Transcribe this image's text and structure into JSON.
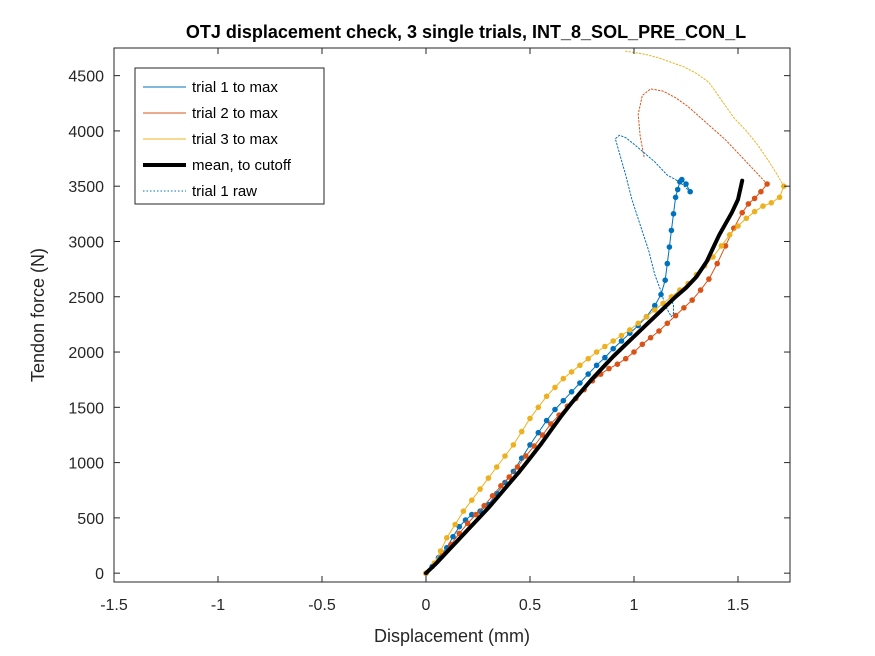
{
  "chart_data": {
    "type": "line",
    "title": "OTJ displacement check, 3 single trials, INT_8_SOL_PRE_CON_L",
    "xlabel": "Displacement (mm)",
    "ylabel": "Tendon force (N)",
    "xlim": [
      -1.5,
      1.75
    ],
    "ylim": [
      -80,
      4750
    ],
    "xticks": [
      -1.5,
      -1,
      -0.5,
      0,
      0.5,
      1,
      1.5
    ],
    "xtick_labels": [
      "-1.5",
      "-1",
      "-0.5",
      "0",
      "0.5",
      "1",
      "1.5"
    ],
    "yticks": [
      0,
      500,
      1000,
      1500,
      2000,
      2500,
      3000,
      3500,
      4000,
      4500
    ],
    "ytick_labels": [
      "0",
      "500",
      "1000",
      "1500",
      "2000",
      "2500",
      "3000",
      "3500",
      "4000",
      "4500"
    ],
    "grid": false,
    "legend_position": "top-left",
    "series": [
      {
        "name": "trial 1 to max",
        "color": "#0072BD",
        "style": "solid",
        "markers": true,
        "x": [
          0.0,
          0.03,
          0.06,
          0.1,
          0.13,
          0.16,
          0.19,
          0.22,
          0.26,
          0.3,
          0.34,
          0.38,
          0.42,
          0.46,
          0.5,
          0.54,
          0.58,
          0.62,
          0.66,
          0.7,
          0.74,
          0.78,
          0.82,
          0.86,
          0.9,
          0.94,
          0.98,
          1.02,
          1.06,
          1.1,
          1.13,
          1.15,
          1.16,
          1.17,
          1.18,
          1.19,
          1.2,
          1.21,
          1.22,
          1.23,
          1.25,
          1.27
        ],
        "y": [
          0,
          60,
          140,
          230,
          330,
          420,
          480,
          530,
          560,
          620,
          720,
          820,
          920,
          1040,
          1160,
          1270,
          1380,
          1480,
          1560,
          1640,
          1720,
          1800,
          1880,
          1950,
          2030,
          2100,
          2170,
          2240,
          2320,
          2420,
          2520,
          2650,
          2800,
          2950,
          3100,
          3250,
          3400,
          3470,
          3540,
          3560,
          3520,
          3450
        ]
      },
      {
        "name": "trial 2 to max",
        "color": "#D95319",
        "style": "solid",
        "markers": true,
        "x": [
          0.0,
          0.04,
          0.08,
          0.12,
          0.16,
          0.2,
          0.24,
          0.28,
          0.32,
          0.36,
          0.4,
          0.44,
          0.48,
          0.52,
          0.56,
          0.6,
          0.64,
          0.68,
          0.72,
          0.76,
          0.8,
          0.84,
          0.88,
          0.92,
          0.96,
          1.0,
          1.04,
          1.08,
          1.12,
          1.16,
          1.2,
          1.24,
          1.28,
          1.32,
          1.36,
          1.4,
          1.44,
          1.48,
          1.52,
          1.55,
          1.58,
          1.61,
          1.64
        ],
        "y": [
          0,
          80,
          170,
          260,
          360,
          450,
          530,
          610,
          700,
          790,
          870,
          960,
          1060,
          1150,
          1250,
          1350,
          1430,
          1510,
          1580,
          1660,
          1740,
          1800,
          1850,
          1890,
          1940,
          2000,
          2070,
          2130,
          2190,
          2260,
          2330,
          2400,
          2470,
          2560,
          2660,
          2800,
          2960,
          3120,
          3260,
          3340,
          3390,
          3450,
          3520
        ]
      },
      {
        "name": "trial 3 to max",
        "color": "#EDB120",
        "style": "solid",
        "markers": true,
        "x": [
          0.0,
          0.04,
          0.07,
          0.1,
          0.14,
          0.18,
          0.22,
          0.26,
          0.3,
          0.34,
          0.38,
          0.42,
          0.46,
          0.5,
          0.54,
          0.58,
          0.62,
          0.66,
          0.7,
          0.74,
          0.78,
          0.82,
          0.86,
          0.9,
          0.94,
          0.98,
          1.02,
          1.06,
          1.1,
          1.14,
          1.18,
          1.22,
          1.26,
          1.3,
          1.34,
          1.38,
          1.42,
          1.46,
          1.5,
          1.54,
          1.58,
          1.62,
          1.66,
          1.7,
          1.72
        ],
        "y": [
          0,
          90,
          200,
          320,
          440,
          560,
          660,
          760,
          860,
          960,
          1060,
          1160,
          1280,
          1400,
          1500,
          1600,
          1680,
          1760,
          1820,
          1880,
          1940,
          2000,
          2050,
          2100,
          2150,
          2200,
          2260,
          2320,
          2380,
          2440,
          2500,
          2560,
          2620,
          2700,
          2780,
          2860,
          2960,
          3060,
          3140,
          3210,
          3270,
          3320,
          3350,
          3400,
          3500
        ]
      },
      {
        "name": "mean, to cutoff",
        "color": "#000000",
        "style": "thick",
        "markers": false,
        "x": [
          0.0,
          0.05,
          0.1,
          0.15,
          0.2,
          0.25,
          0.3,
          0.35,
          0.4,
          0.45,
          0.5,
          0.55,
          0.6,
          0.65,
          0.7,
          0.75,
          0.8,
          0.85,
          0.9,
          0.95,
          1.0,
          1.05,
          1.1,
          1.15,
          1.2,
          1.25,
          1.3,
          1.35,
          1.38,
          1.41,
          1.44,
          1.47,
          1.5,
          1.52
        ],
        "y": [
          0,
          90,
          190,
          290,
          390,
          490,
          590,
          700,
          810,
          920,
          1040,
          1160,
          1290,
          1420,
          1540,
          1650,
          1760,
          1860,
          1960,
          2050,
          2140,
          2230,
          2320,
          2410,
          2500,
          2580,
          2680,
          2820,
          2940,
          3060,
          3160,
          3260,
          3380,
          3550
        ]
      },
      {
        "name": "trial 1 raw",
        "color": "#0072BD",
        "style": "dotted",
        "markers": false,
        "x": [
          1.27,
          1.23,
          1.2,
          1.16,
          1.13,
          1.1,
          1.05,
          1.0,
          0.96,
          0.93,
          0.91,
          0.93,
          0.96,
          0.99,
          1.03,
          1.07,
          1.1,
          1.13,
          1.15,
          1.17,
          1.18,
          1.19,
          1.19,
          1.18
        ],
        "y": [
          3450,
          3520,
          3560,
          3600,
          3660,
          3720,
          3800,
          3880,
          3940,
          3960,
          3930,
          3800,
          3600,
          3380,
          3150,
          2920,
          2700,
          2550,
          2420,
          2350,
          2320,
          2350,
          2420,
          2480
        ]
      },
      {
        "name": "",
        "color": "#D95319",
        "style": "dotted-thin",
        "markers": false,
        "x": [
          1.64,
          1.6,
          1.55,
          1.5,
          1.44,
          1.38,
          1.32,
          1.26,
          1.2,
          1.14,
          1.08,
          1.04,
          1.02,
          1.03,
          1.05
        ],
        "y": [
          3520,
          3600,
          3700,
          3800,
          3920,
          4020,
          4120,
          4220,
          4300,
          4360,
          4380,
          4320,
          4150,
          3950,
          3750
        ]
      },
      {
        "name": "",
        "color": "#EDB120",
        "style": "dotted-thin",
        "markers": false,
        "x": [
          1.72,
          1.69,
          1.65,
          1.6,
          1.54,
          1.48,
          1.42,
          1.36,
          1.3,
          1.24,
          1.18,
          1.12,
          1.06,
          1.0,
          0.96
        ],
        "y": [
          3500,
          3600,
          3720,
          3860,
          4000,
          4120,
          4280,
          4440,
          4520,
          4580,
          4620,
          4660,
          4690,
          4710,
          4720
        ]
      }
    ]
  }
}
